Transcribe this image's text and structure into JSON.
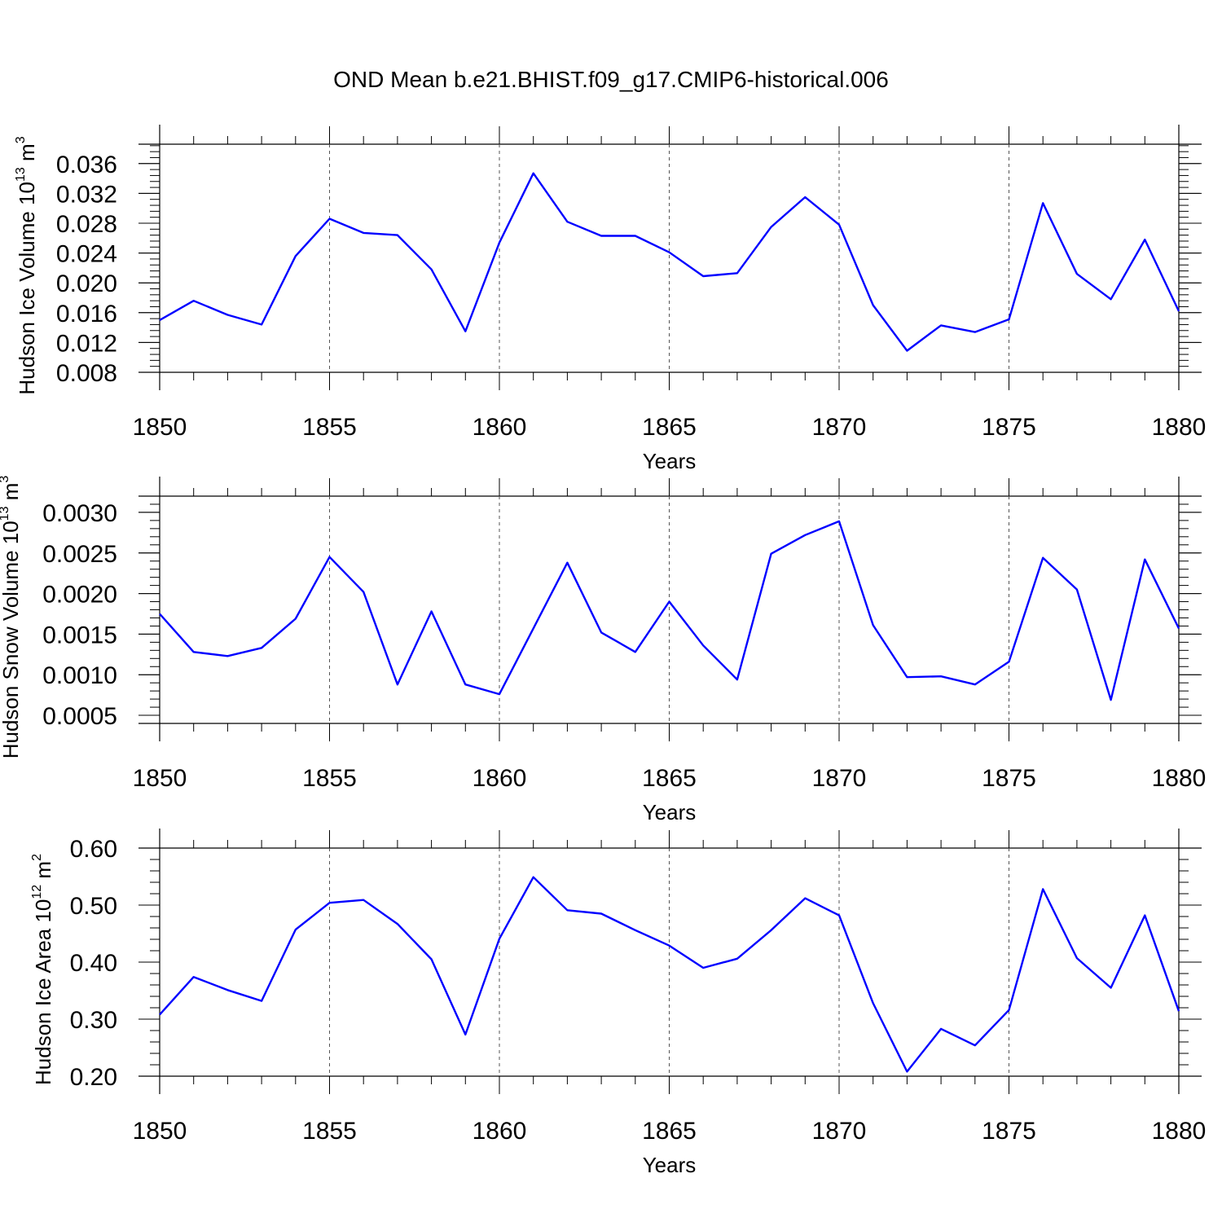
{
  "title": "OND Mean b.e21.BHIST.f09_g17.CMIP6-historical.006",
  "chart_data": [
    {
      "type": "line",
      "ylabel_text": "Hudson Ice Volume 10",
      "ylabel_exp": "13",
      "ylabel_unit": " m",
      "ylabel_unit_exp": "3",
      "xlabel": "Years",
      "xlim": [
        1850,
        1880
      ],
      "ylim": [
        0.008,
        0.0386
      ],
      "xticks": [
        "1850",
        "1855",
        "1860",
        "1865",
        "1870",
        "1875",
        "1880"
      ],
      "yticks": [
        "0.008",
        "0.012",
        "0.016",
        "0.020",
        "0.024",
        "0.028",
        "0.032",
        "0.036"
      ],
      "x": [
        1850,
        1851,
        1852,
        1853,
        1854,
        1855,
        1856,
        1857,
        1858,
        1859,
        1860,
        1861,
        1862,
        1863,
        1864,
        1865,
        1866,
        1867,
        1868,
        1869,
        1870,
        1871,
        1872,
        1873,
        1874,
        1875,
        1876,
        1877,
        1878,
        1879,
        1880
      ],
      "series": [
        {
          "values": [
            0.015,
            0.0176,
            0.0157,
            0.0144,
            0.0236,
            0.0286,
            0.0267,
            0.0264,
            0.0218,
            0.0135,
            0.0254,
            0.0347,
            0.0282,
            0.0263,
            0.0263,
            0.0241,
            0.0209,
            0.0213,
            0.0275,
            0.0315,
            0.0278,
            0.017,
            0.0109,
            0.0143,
            0.0134,
            0.0151,
            0.0307,
            0.0212,
            0.0178,
            0.0258,
            0.0162
          ],
          "color": "#0000ff"
        }
      ]
    },
    {
      "type": "line",
      "ylabel_text": "Hudson Snow Volume 10",
      "ylabel_exp": "13",
      "ylabel_unit": " m",
      "ylabel_unit_exp": "3",
      "xlabel": "Years",
      "xlim": [
        1850,
        1880
      ],
      "ylim": [
        0.0004,
        0.0032
      ],
      "xticks": [
        "1850",
        "1855",
        "1860",
        "1865",
        "1870",
        "1875",
        "1880"
      ],
      "yticks": [
        "0.0005",
        "0.0010",
        "0.0015",
        "0.0020",
        "0.0025",
        "0.0030"
      ],
      "x": [
        1850,
        1851,
        1852,
        1853,
        1854,
        1855,
        1856,
        1857,
        1858,
        1859,
        1860,
        1861,
        1862,
        1863,
        1864,
        1865,
        1866,
        1867,
        1868,
        1869,
        1870,
        1871,
        1872,
        1873,
        1874,
        1875,
        1876,
        1877,
        1878,
        1879,
        1880
      ],
      "series": [
        {
          "values": [
            0.00175,
            0.00128,
            0.00123,
            0.00133,
            0.00169,
            0.00245,
            0.00202,
            0.00088,
            0.00178,
            0.00088,
            0.00076,
            0.00157,
            0.00238,
            0.00152,
            0.00128,
            0.0019,
            0.00136,
            0.00094,
            0.00249,
            0.00272,
            0.00289,
            0.00161,
            0.00097,
            0.00098,
            0.00088,
            0.00116,
            0.00244,
            0.00205,
            0.00069,
            0.00242,
            0.00157
          ],
          "color": "#0000ff"
        }
      ]
    },
    {
      "type": "line",
      "ylabel_text": "Hudson Ice Area 10",
      "ylabel_exp": "12",
      "ylabel_unit": " m",
      "ylabel_unit_exp": "2",
      "xlabel": "Years",
      "xlim": [
        1850,
        1880
      ],
      "ylim": [
        0.2,
        0.6
      ],
      "xticks": [
        "1850",
        "1855",
        "1860",
        "1865",
        "1870",
        "1875",
        "1880"
      ],
      "yticks": [
        "0.20",
        "0.30",
        "0.40",
        "0.50",
        "0.60"
      ],
      "x": [
        1850,
        1851,
        1852,
        1853,
        1854,
        1855,
        1856,
        1857,
        1858,
        1859,
        1860,
        1861,
        1862,
        1863,
        1864,
        1865,
        1866,
        1867,
        1868,
        1869,
        1870,
        1871,
        1872,
        1873,
        1874,
        1875,
        1876,
        1877,
        1878,
        1879,
        1880
      ],
      "series": [
        {
          "values": [
            0.308,
            0.374,
            0.351,
            0.332,
            0.457,
            0.504,
            0.509,
            0.467,
            0.405,
            0.273,
            0.441,
            0.549,
            0.491,
            0.485,
            0.456,
            0.429,
            0.39,
            0.406,
            0.456,
            0.512,
            0.482,
            0.328,
            0.208,
            0.283,
            0.254,
            0.316,
            0.528,
            0.407,
            0.355,
            0.482,
            0.314
          ],
          "color": "#0000ff"
        }
      ]
    }
  ]
}
